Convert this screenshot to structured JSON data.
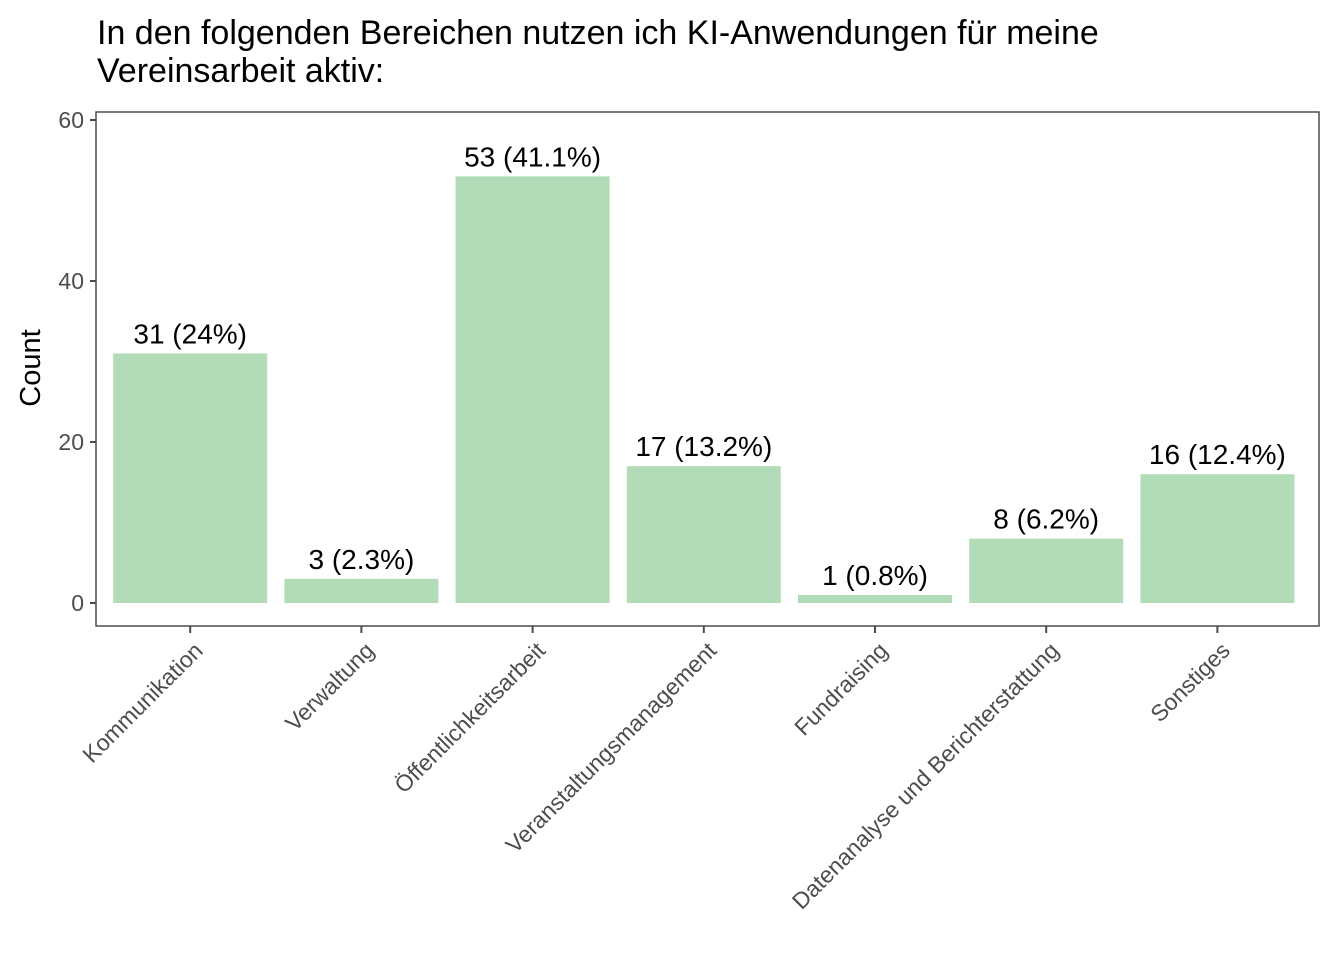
{
  "chart_data": {
    "type": "bar",
    "title": "In den folgenden Bereichen nutzen ich KI-Anwendungen für meine Vereinsarbeit aktiv:",
    "title_lines": [
      "In den folgenden Bereichen nutzen ich KI-Anwendungen für meine",
      "Vereinsarbeit aktiv:"
    ],
    "xlabel": "",
    "ylabel": "Count",
    "ylim": [
      0,
      60
    ],
    "yticks": [
      0,
      20,
      40,
      60
    ],
    "grid": false,
    "categories": [
      "Kommunikation",
      "Verwaltung",
      "Öffentlichkeitsarbeit",
      "Veranstaltungsmanagement",
      "Fundraising",
      "Datenanalyse und Berichterstattung",
      "Sonstiges"
    ],
    "values": [
      31,
      3,
      53,
      17,
      1,
      8,
      16
    ],
    "data_labels": [
      "31 (24%)",
      "3 (2.3%)",
      "53 (41.1%)",
      "17 (13.2%)",
      "1 (0.8%)",
      "8 (6.2%)",
      "16 (12.4%)"
    ],
    "colors": {
      "bar": "#b2dcb8",
      "axis": "#4d4d4d",
      "tick_text": "#4d4d4d",
      "text": "#000000"
    }
  }
}
